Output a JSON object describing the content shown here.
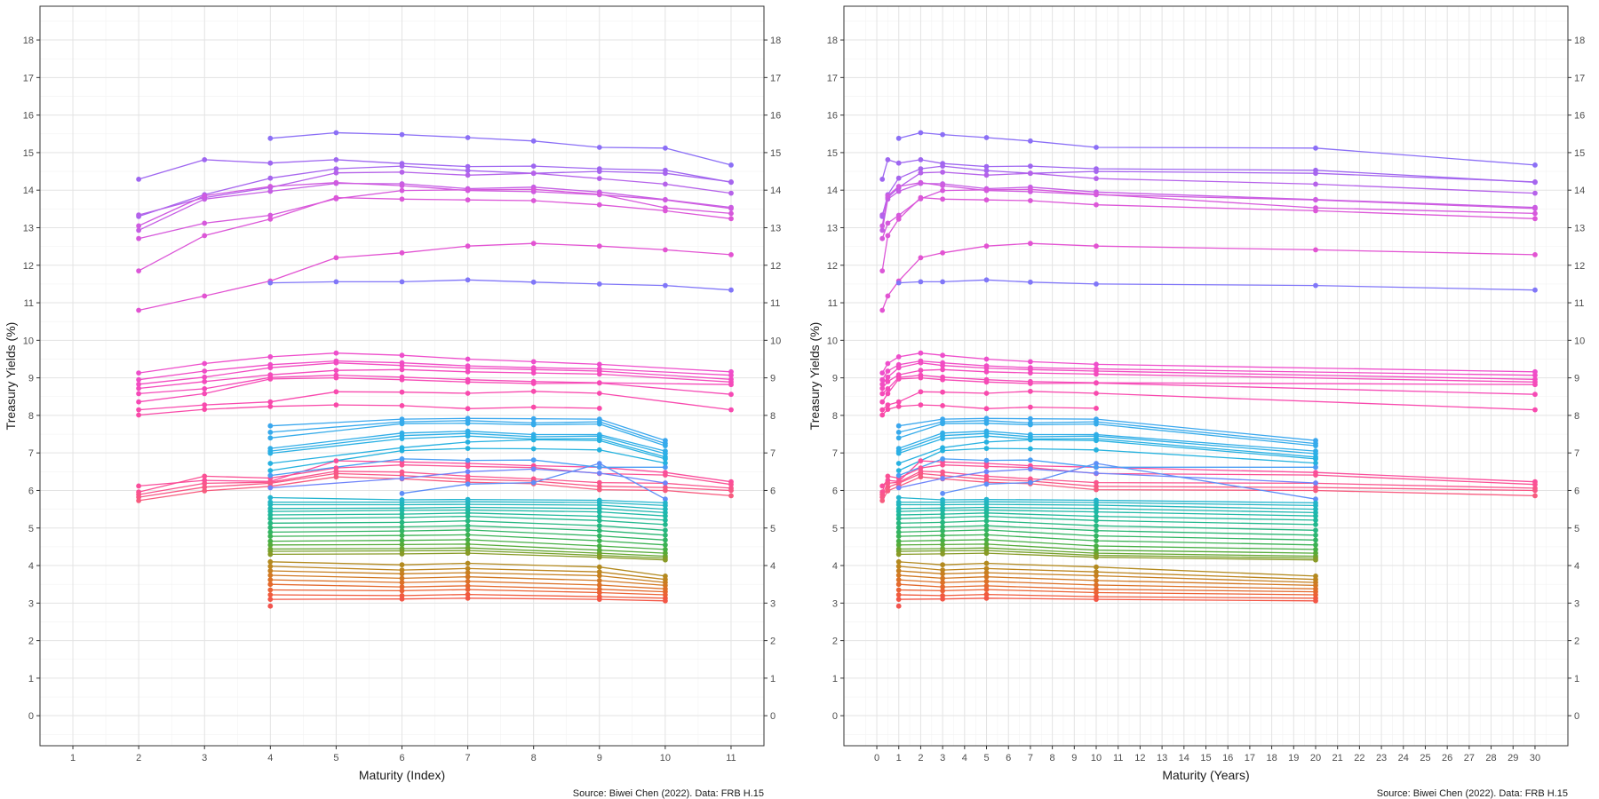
{
  "chart_data": [
    {
      "type": "line",
      "xlabel": "Maturity (Index)",
      "ylabel": "Treasury Yields (%)",
      "caption": "Source: Biwei Chen (2022). Data: FRB H.15",
      "xlim": [
        0.5,
        11.5
      ],
      "ylim": [
        -0.8,
        18.9
      ],
      "x_ticks": [
        1,
        2,
        3,
        4,
        5,
        6,
        7,
        8,
        9,
        10,
        11
      ],
      "y_ticks": [
        0,
        1,
        2,
        3,
        4,
        5,
        6,
        7,
        8,
        9,
        10,
        11,
        12,
        13,
        14,
        15,
        16,
        17,
        18
      ],
      "grid": true,
      "secondary_y_axis": true,
      "legend": "none"
    },
    {
      "type": "line",
      "xlabel": "Maturity (Years)",
      "ylabel": "Treasury Yields (%)",
      "caption": "Source: Biwei Chen (2022). Data: FRB H.15",
      "xlim": [
        -1.5,
        31.5
      ],
      "ylim": [
        -0.8,
        18.9
      ],
      "x_ticks": [
        0,
        1,
        2,
        3,
        4,
        5,
        6,
        7,
        8,
        9,
        10,
        11,
        12,
        13,
        14,
        15,
        16,
        17,
        18,
        19,
        20,
        21,
        22,
        23,
        24,
        25,
        26,
        27,
        28,
        29,
        30
      ],
      "y_ticks": [
        0,
        1,
        2,
        3,
        4,
        5,
        6,
        7,
        8,
        9,
        10,
        11,
        12,
        13,
        14,
        15,
        16,
        17,
        18
      ],
      "grid": true,
      "secondary_y_axis": true,
      "legend": "none"
    }
  ],
  "curves": {
    "index_maturities": [
      1,
      2,
      3,
      4,
      5,
      6,
      7,
      8,
      9,
      10,
      11
    ],
    "year_maturities": [
      0.25,
      0.5,
      1,
      2,
      3,
      5,
      7,
      10,
      20,
      30
    ],
    "series": [
      {
        "color": "#8b6ff6",
        "x": [
          4,
          5,
          6,
          7,
          8,
          9,
          10,
          11
        ],
        "y": [
          15.38,
          15.53,
          15.48,
          15.4,
          15.31,
          15.14,
          15.12,
          14.67
        ]
      },
      {
        "color": "#9e66f0",
        "x": [
          2,
          3,
          4,
          5,
          6,
          7,
          8,
          9,
          10,
          11
        ],
        "y": [
          14.29,
          14.81,
          14.72,
          14.81,
          14.71,
          14.63,
          14.64,
          14.57,
          14.53,
          14.21
        ]
      },
      {
        "color": "#a665ee",
        "x": [
          2,
          3,
          4,
          5,
          6,
          7,
          8,
          9,
          10,
          11
        ],
        "y": [
          13.3,
          13.88,
          14.32,
          14.57,
          14.64,
          14.52,
          14.45,
          14.5,
          14.45,
          14.22
        ]
      },
      {
        "color": "#b562ea",
        "x": [
          2,
          3,
          4,
          5,
          6,
          7,
          8,
          9,
          10,
          11
        ],
        "y": [
          13.34,
          13.8,
          14.07,
          14.46,
          14.48,
          14.4,
          14.45,
          14.31,
          14.16,
          13.92
        ]
      },
      {
        "color": "#c55ee4",
        "x": [
          2,
          3,
          4,
          5,
          6,
          7,
          8,
          9,
          10,
          11
        ],
        "y": [
          12.93,
          13.76,
          13.97,
          14.18,
          14.17,
          14.04,
          14.08,
          13.95,
          13.75,
          13.54
        ]
      },
      {
        "color": "#cf5be0",
        "x": [
          2,
          3,
          4,
          5,
          6,
          7,
          8,
          9,
          10,
          11
        ],
        "y": [
          13.05,
          13.85,
          14.1,
          14.2,
          14.12,
          13.99,
          13.96,
          13.88,
          13.74,
          13.51
        ]
      },
      {
        "color": "#d659dc",
        "x": [
          2,
          3,
          4,
          5,
          6,
          7,
          8,
          9,
          10,
          11
        ],
        "y": [
          12.71,
          13.12,
          13.33,
          13.77,
          13.99,
          14.01,
          14.02,
          13.89,
          13.53,
          13.38
        ]
      },
      {
        "color": "#dc57d8",
        "x": [
          2,
          3,
          4,
          5,
          6,
          7,
          8,
          9,
          10,
          11
        ],
        "y": [
          11.85,
          12.79,
          13.23,
          13.8,
          13.76,
          13.74,
          13.72,
          13.61,
          13.45,
          13.24
        ]
      },
      {
        "color": "#e253d2",
        "x": [
          2,
          3,
          4,
          5,
          6,
          7,
          8,
          9,
          10,
          11
        ],
        "y": [
          10.8,
          11.18,
          11.58,
          12.2,
          12.33,
          12.51,
          12.58,
          12.51,
          12.41,
          12.28
        ]
      },
      {
        "color": "#8076f8",
        "x": [
          4,
          5,
          6,
          7,
          8,
          9,
          10,
          11
        ],
        "y": [
          11.53,
          11.56,
          11.56,
          11.61,
          11.55,
          11.5,
          11.46,
          11.34
        ]
      },
      {
        "color": "#ee4ecb",
        "x": [
          2,
          3,
          4,
          5,
          6,
          7,
          8,
          9,
          11
        ],
        "y": [
          9.13,
          9.38,
          9.56,
          9.66,
          9.6,
          9.5,
          9.43,
          9.36,
          9.16
        ]
      },
      {
        "color": "#f04dc6",
        "x": [
          2,
          3,
          4,
          5,
          6,
          7,
          8,
          9,
          11
        ],
        "y": [
          8.95,
          9.18,
          9.35,
          9.45,
          9.4,
          9.32,
          9.27,
          9.24,
          9.07
        ]
      },
      {
        "color": "#f24cc2",
        "x": [
          2,
          3,
          4,
          5,
          6,
          7,
          8,
          9,
          11
        ],
        "y": [
          8.83,
          9.02,
          9.27,
          9.4,
          9.33,
          9.26,
          9.22,
          9.18,
          8.96
        ]
      },
      {
        "color": "#f44bbd",
        "x": [
          2,
          3,
          4,
          5,
          6,
          7,
          8,
          9,
          11
        ],
        "y": [
          8.72,
          8.9,
          9.08,
          9.2,
          9.22,
          9.16,
          9.13,
          9.1,
          8.89
        ]
      },
      {
        "color": "#f54ab9",
        "x": [
          2,
          3,
          4,
          5,
          6,
          7,
          8,
          9,
          11
        ],
        "y": [
          8.58,
          8.71,
          9.01,
          9.07,
          9.02,
          8.95,
          8.9,
          8.87,
          8.82
        ]
      },
      {
        "color": "#f64ab5",
        "x": [
          2,
          3,
          4,
          5,
          6,
          7,
          8,
          9,
          11
        ],
        "y": [
          8.36,
          8.58,
          8.97,
          9.0,
          8.95,
          8.89,
          8.85,
          8.86,
          8.56
        ]
      },
      {
        "color": "#f84aae",
        "x": [
          2,
          3,
          4,
          5,
          6,
          7,
          8,
          9,
          11
        ],
        "y": [
          8.15,
          8.28,
          8.36,
          8.63,
          8.62,
          8.59,
          8.64,
          8.59,
          8.15
        ]
      },
      {
        "color": "#f949a8",
        "x": [
          2,
          3,
          4,
          5,
          6,
          7,
          8,
          9
        ],
        "y": [
          8.01,
          8.16,
          8.24,
          8.28,
          8.26,
          8.18,
          8.22,
          8.19
        ]
      },
      {
        "color": "#fa4d9b",
        "x": [
          2,
          3,
          4,
          5,
          6,
          7,
          8,
          9,
          10,
          11
        ],
        "y": [
          6.12,
          6.27,
          6.24,
          6.79,
          6.76,
          6.72,
          6.66,
          6.62,
          6.48,
          6.23
        ]
      },
      {
        "color": "#fa5194",
        "x": [
          2,
          3,
          4,
          5,
          6,
          7,
          8,
          9,
          10,
          11
        ],
        "y": [
          5.96,
          6.38,
          6.33,
          6.6,
          6.68,
          6.64,
          6.61,
          6.45,
          6.41,
          6.16
        ]
      },
      {
        "color": "#f9558d",
        "x": [
          2,
          3,
          4,
          5,
          6,
          7,
          8,
          9,
          10,
          11
        ],
        "y": [
          5.89,
          6.19,
          6.22,
          6.51,
          6.49,
          6.38,
          6.31,
          6.21,
          6.19,
          6.06
        ]
      },
      {
        "color": "#f85886",
        "x": [
          2,
          3,
          4,
          5,
          6,
          7,
          8,
          9,
          10,
          11
        ],
        "y": [
          5.82,
          6.09,
          6.19,
          6.45,
          6.4,
          6.3,
          6.25,
          6.11,
          6.08,
          6.0
        ]
      },
      {
        "color": "#f75c7f",
        "x": [
          2,
          3,
          4,
          5,
          6,
          7,
          8,
          9,
          10,
          11
        ],
        "y": [
          5.73,
          5.99,
          6.11,
          6.36,
          6.31,
          6.22,
          6.18,
          6.02,
          6.0,
          5.86
        ]
      },
      {
        "color": "#6f84fa",
        "x": [
          4,
          6,
          7,
          8,
          9,
          10
        ],
        "y": [
          6.07,
          6.32,
          6.5,
          6.57,
          6.46,
          6.2
        ]
      },
      {
        "color": "#5f8ef7",
        "x": [
          6,
          7,
          8,
          9,
          10
        ],
        "y": [
          5.92,
          6.17,
          6.21,
          6.72,
          5.77
        ]
      },
      {
        "color": "#3aa7ee",
        "x": [
          4,
          6,
          7,
          8,
          9,
          10
        ],
        "y": [
          7.72,
          7.9,
          7.92,
          7.91,
          7.9,
          7.33
        ]
      },
      {
        "color": "#37a9ec",
        "x": [
          4,
          6,
          7,
          8,
          9,
          10
        ],
        "y": [
          7.55,
          7.83,
          7.86,
          7.8,
          7.83,
          7.25
        ]
      },
      {
        "color": "#34abea",
        "x": [
          4,
          6,
          7,
          8,
          9,
          10
        ],
        "y": [
          7.4,
          7.78,
          7.79,
          7.75,
          7.77,
          7.19
        ]
      },
      {
        "color": "#30ade8",
        "x": [
          4,
          6,
          7,
          8,
          9,
          10
        ],
        "y": [
          7.12,
          7.53,
          7.58,
          7.49,
          7.49,
          7.05
        ]
      },
      {
        "color": "#2daee6",
        "x": [
          4,
          6,
          7,
          8,
          9,
          10
        ],
        "y": [
          7.05,
          7.46,
          7.52,
          7.43,
          7.45,
          6.98
        ]
      },
      {
        "color": "#2ab0e4",
        "x": [
          4,
          6,
          7,
          8,
          9,
          10
        ],
        "y": [
          6.99,
          7.38,
          7.45,
          7.37,
          7.38,
          6.89
        ]
      },
      {
        "color": "#27b1e1",
        "x": [
          4,
          6,
          7,
          8,
          9,
          10
        ],
        "y": [
          6.72,
          7.14,
          7.29,
          7.35,
          7.33,
          6.84
        ]
      },
      {
        "color": "#25b2de",
        "x": [
          4,
          6,
          7,
          8,
          9,
          10
        ],
        "y": [
          6.53,
          7.06,
          7.12,
          7.11,
          7.08,
          6.73
        ]
      },
      {
        "color": "#4b9ef4",
        "x": [
          4,
          6,
          7,
          8,
          9,
          10
        ],
        "y": [
          6.4,
          6.84,
          6.8,
          6.81,
          6.62,
          6.62
        ]
      },
      {
        "color": "#24b4cf",
        "x": [
          4,
          6,
          7,
          9,
          10
        ],
        "y": [
          5.81,
          5.75,
          5.76,
          5.74,
          5.67
        ]
      },
      {
        "color": "#22b5c5",
        "x": [
          4,
          6,
          7,
          9,
          10
        ],
        "y": [
          5.69,
          5.69,
          5.7,
          5.68,
          5.6
        ]
      },
      {
        "color": "#20b6bb",
        "x": [
          4,
          6,
          7,
          9,
          10
        ],
        "y": [
          5.62,
          5.62,
          5.63,
          5.61,
          5.5
        ]
      },
      {
        "color": "#1eb7b1",
        "x": [
          4,
          6,
          7,
          9,
          10
        ],
        "y": [
          5.52,
          5.53,
          5.55,
          5.52,
          5.41
        ]
      },
      {
        "color": "#1db8a6",
        "x": [
          4,
          6,
          7,
          9,
          10
        ],
        "y": [
          5.44,
          5.47,
          5.48,
          5.43,
          5.32
        ]
      },
      {
        "color": "#1fb89a",
        "x": [
          4,
          6,
          7,
          9,
          10
        ],
        "y": [
          5.35,
          5.37,
          5.4,
          5.31,
          5.21
        ]
      },
      {
        "color": "#22b88d",
        "x": [
          4,
          6,
          7,
          9,
          10
        ],
        "y": [
          5.25,
          5.28,
          5.31,
          5.2,
          5.09
        ]
      },
      {
        "color": "#26b780",
        "x": [
          4,
          6,
          7,
          9,
          10
        ],
        "y": [
          5.13,
          5.15,
          5.19,
          5.06,
          4.94
        ]
      },
      {
        "color": "#2bb672",
        "x": [
          4,
          6,
          7,
          9,
          10
        ],
        "y": [
          5.01,
          5.03,
          5.06,
          4.93,
          4.81
        ]
      },
      {
        "color": "#32b463",
        "x": [
          4,
          6,
          7,
          9,
          10
        ],
        "y": [
          4.89,
          4.92,
          4.95,
          4.79,
          4.68
        ]
      },
      {
        "color": "#3bb254",
        "x": [
          4,
          6,
          7,
          9,
          10
        ],
        "y": [
          4.78,
          4.8,
          4.82,
          4.66,
          4.55
        ]
      },
      {
        "color": "#46af45",
        "x": [
          4,
          6,
          7,
          9,
          10
        ],
        "y": [
          4.65,
          4.67,
          4.69,
          4.52,
          4.43
        ]
      },
      {
        "color": "#55ab3a",
        "x": [
          4,
          6,
          7,
          9,
          10
        ],
        "y": [
          4.55,
          4.56,
          4.57,
          4.41,
          4.33
        ]
      },
      {
        "color": "#66a631",
        "x": [
          4,
          6,
          7,
          9,
          10
        ],
        "y": [
          4.44,
          4.45,
          4.47,
          4.33,
          4.25
        ]
      },
      {
        "color": "#77a02b",
        "x": [
          4,
          6,
          7,
          9,
          10
        ],
        "y": [
          4.38,
          4.39,
          4.4,
          4.27,
          4.2
        ]
      },
      {
        "color": "#889a26",
        "x": [
          4,
          6,
          7,
          9,
          10
        ],
        "y": [
          4.3,
          4.31,
          4.33,
          4.22,
          4.15
        ]
      },
      {
        "color": "#b38a1f",
        "x": [
          4,
          6,
          7,
          9,
          10
        ],
        "y": [
          4.1,
          4.02,
          4.06,
          3.96,
          3.72
        ]
      },
      {
        "color": "#bd851f",
        "x": [
          4,
          6,
          7,
          9,
          10
        ],
        "y": [
          3.98,
          3.88,
          3.92,
          3.83,
          3.63
        ]
      },
      {
        "color": "#c77f20",
        "x": [
          4,
          6,
          7,
          9,
          10
        ],
        "y": [
          3.86,
          3.78,
          3.81,
          3.73,
          3.55
        ]
      },
      {
        "color": "#d27823",
        "x": [
          4,
          6,
          7,
          9,
          10
        ],
        "y": [
          3.74,
          3.66,
          3.7,
          3.6,
          3.47
        ]
      },
      {
        "color": "#dc7127",
        "x": [
          4,
          6,
          7,
          9,
          10
        ],
        "y": [
          3.62,
          3.55,
          3.58,
          3.48,
          3.38
        ]
      },
      {
        "color": "#e4692d",
        "x": [
          4,
          6,
          7,
          9,
          10
        ],
        "y": [
          3.5,
          3.43,
          3.46,
          3.37,
          3.3
        ]
      },
      {
        "color": "#eb6235",
        "x": [
          4,
          6,
          7,
          9,
          10
        ],
        "y": [
          3.35,
          3.33,
          3.36,
          3.28,
          3.22
        ]
      },
      {
        "color": "#f05b3d",
        "x": [
          4,
          6,
          7,
          9,
          10
        ],
        "y": [
          3.22,
          3.2,
          3.23,
          3.17,
          3.13
        ]
      },
      {
        "color": "#f35646",
        "x": [
          4,
          6,
          7,
          9,
          10
        ],
        "y": [
          3.1,
          3.11,
          3.13,
          3.1,
          3.06
        ]
      },
      {
        "color": "#f2544e",
        "x": [
          4
        ],
        "y": [
          2.92
        ]
      }
    ]
  }
}
